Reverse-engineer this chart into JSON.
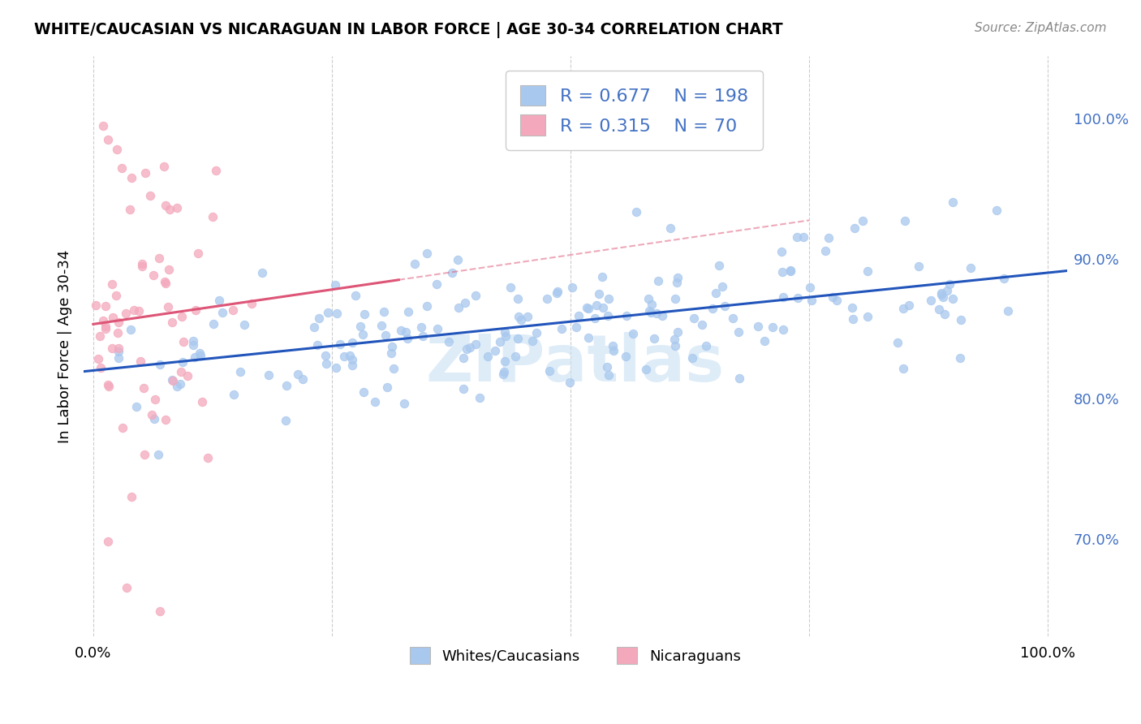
{
  "title": "WHITE/CAUCASIAN VS NICARAGUAN IN LABOR FORCE | AGE 30-34 CORRELATION CHART",
  "source": "Source: ZipAtlas.com",
  "ylabel": "In Labor Force | Age 30-34",
  "legend_blue_R": "0.677",
  "legend_blue_N": "198",
  "legend_pink_R": "0.315",
  "legend_pink_N": "70",
  "blue_color": "#A8C8EE",
  "pink_color": "#F4A8BC",
  "blue_line_color": "#2255BB",
  "pink_line_color": "#DD5577",
  "watermark": "ZIPatlas",
  "legend_label_blue": "Whites/Caucasians",
  "legend_label_pink": "Nicaraguans",
  "ylim_low": 0.63,
  "ylim_high": 1.045,
  "xlim_low": -0.01,
  "xlim_high": 1.02,
  "yticks": [
    0.7,
    0.8,
    0.9,
    1.0
  ],
  "ytick_labels": [
    "70.0%",
    "80.0%",
    "90.0%",
    "100.0%"
  ],
  "xtick_labels_pos": [
    0.0,
    1.0
  ],
  "xtick_labels": [
    "0.0%",
    "100.0%"
  ]
}
